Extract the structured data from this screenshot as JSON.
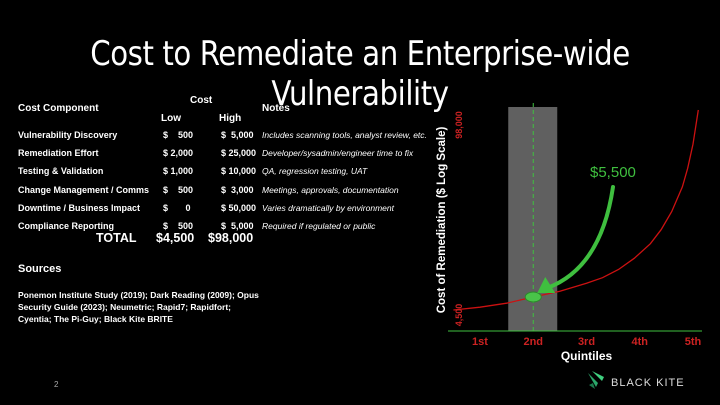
{
  "slide": {
    "title": "Cost to Remediate an Enterprise-wide Vulnerability",
    "page_number": "2",
    "brand": "BLACK KITE"
  },
  "table": {
    "col_component": "Cost Component",
    "col_cost": "Cost",
    "col_low": "Low",
    "col_high": "High",
    "col_notes": "Notes",
    "rows": [
      {
        "component": "Vulnerability Discovery",
        "low": "$    500",
        "high": "$  5,000",
        "notes": "Includes scanning tools, analyst review, etc."
      },
      {
        "component": "Remediation Effort",
        "low": "$ 2,000",
        "high": "$ 25,000",
        "notes": "Developer/sysadmin/engineer time to fix"
      },
      {
        "component": "Testing & Validation",
        "low": "$ 1,000",
        "high": "$ 10,000",
        "notes": "QA, regression testing, UAT"
      },
      {
        "component": "Change Management / Comms",
        "low": "$    500",
        "high": "$  3,000",
        "notes": "Meetings, approvals, documentation"
      },
      {
        "component": "Downtime / Business Impact",
        "low": "$       0",
        "high": "$ 50,000",
        "notes": "Varies dramatically by environment"
      },
      {
        "component": "Compliance Reporting",
        "low": "$    500",
        "high": "$  5,000",
        "notes": "Required if regulated or public"
      }
    ],
    "total_label": "TOTAL",
    "total_low": "$4,500",
    "total_high": "$98,000"
  },
  "sources": {
    "heading": "Sources",
    "text": "Ponemon Institute Study (2019); Dark Reading (2009); Opus Security Guide (2023); Neumetric; Rapid7; Rapidfort; Cyentia; The Pi-Guy; Black Kite BRITE"
  },
  "chart_data": {
    "type": "line",
    "ylabel": "Cost of Remediation ($ Log Scale)",
    "xlabel": "Quintiles",
    "categories": [
      "1st",
      "2nd",
      "3rd",
      "4th",
      "5th"
    ],
    "y_min_label": "4,500",
    "y_max_label": "98,000",
    "ylim": [
      4500,
      98000
    ],
    "log_scale": true,
    "series": [
      {
        "x": [
          0.5,
          1.0,
          1.5,
          2.0,
          2.5,
          3.0,
          3.3,
          3.6,
          3.9,
          4.2,
          4.4,
          4.6,
          4.8,
          4.9,
          5.0,
          5.1
        ],
        "values": [
          4500,
          4700,
          5000,
          5500,
          6000,
          6800,
          7400,
          8400,
          10000,
          12500,
          15500,
          20500,
          30000,
          40000,
          58000,
          98000
        ]
      }
    ],
    "highlight_band": {
      "category": "2nd"
    },
    "marker": {
      "x": 2.0,
      "value": 5500
    },
    "annotation": "$5,500",
    "colors": {
      "line": "#cc1111",
      "axis_labels": "#cc2222",
      "annotation": "#3fbf3f",
      "band": "#808080"
    }
  }
}
